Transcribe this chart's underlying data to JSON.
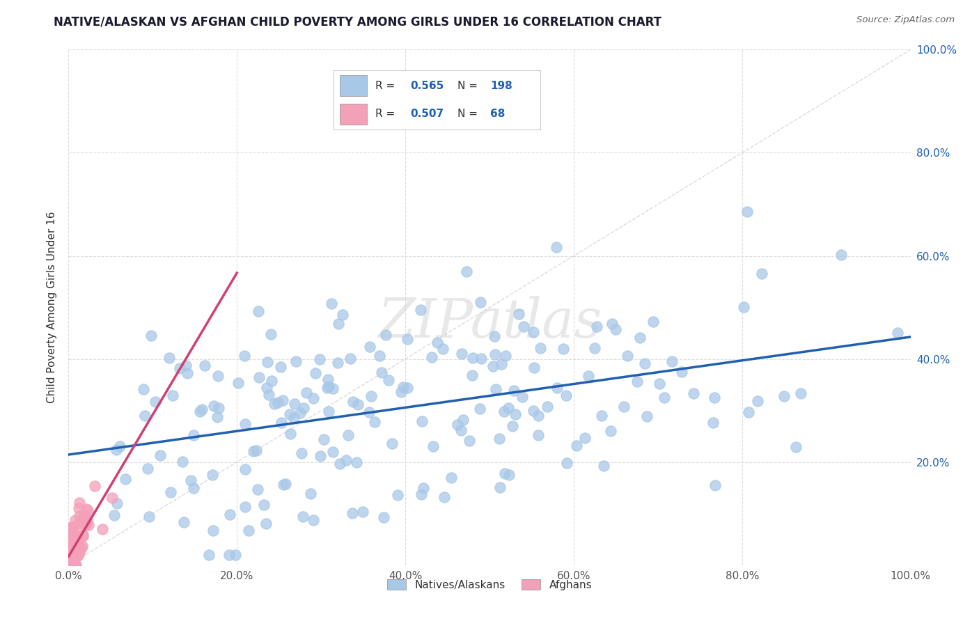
{
  "title": "NATIVE/ALASKAN VS AFGHAN CHILD POVERTY AMONG GIRLS UNDER 16 CORRELATION CHART",
  "source": "Source: ZipAtlas.com",
  "ylabel": "Child Poverty Among Girls Under 16",
  "watermark": "ZIPatlas",
  "blue_R": 0.565,
  "blue_N": 198,
  "pink_R": 0.507,
  "pink_N": 68,
  "blue_color": "#a8c8e8",
  "pink_color": "#f4a0b8",
  "blue_line_color": "#2060b0",
  "pink_line_color": "#d04070",
  "diag_color": "#cccccc",
  "legend_label_blue": "Natives/Alaskans",
  "legend_label_pink": "Afghans",
  "title_color": "#1a1a2e",
  "source_color": "#666666",
  "axis_label_color": "#333333",
  "tick_label_color": "#555555",
  "right_tick_color": "#2060b0",
  "background_color": "#ffffff",
  "grid_color": "#dddddd",
  "xlim": [
    0.0,
    1.0
  ],
  "ylim": [
    0.0,
    1.0
  ]
}
